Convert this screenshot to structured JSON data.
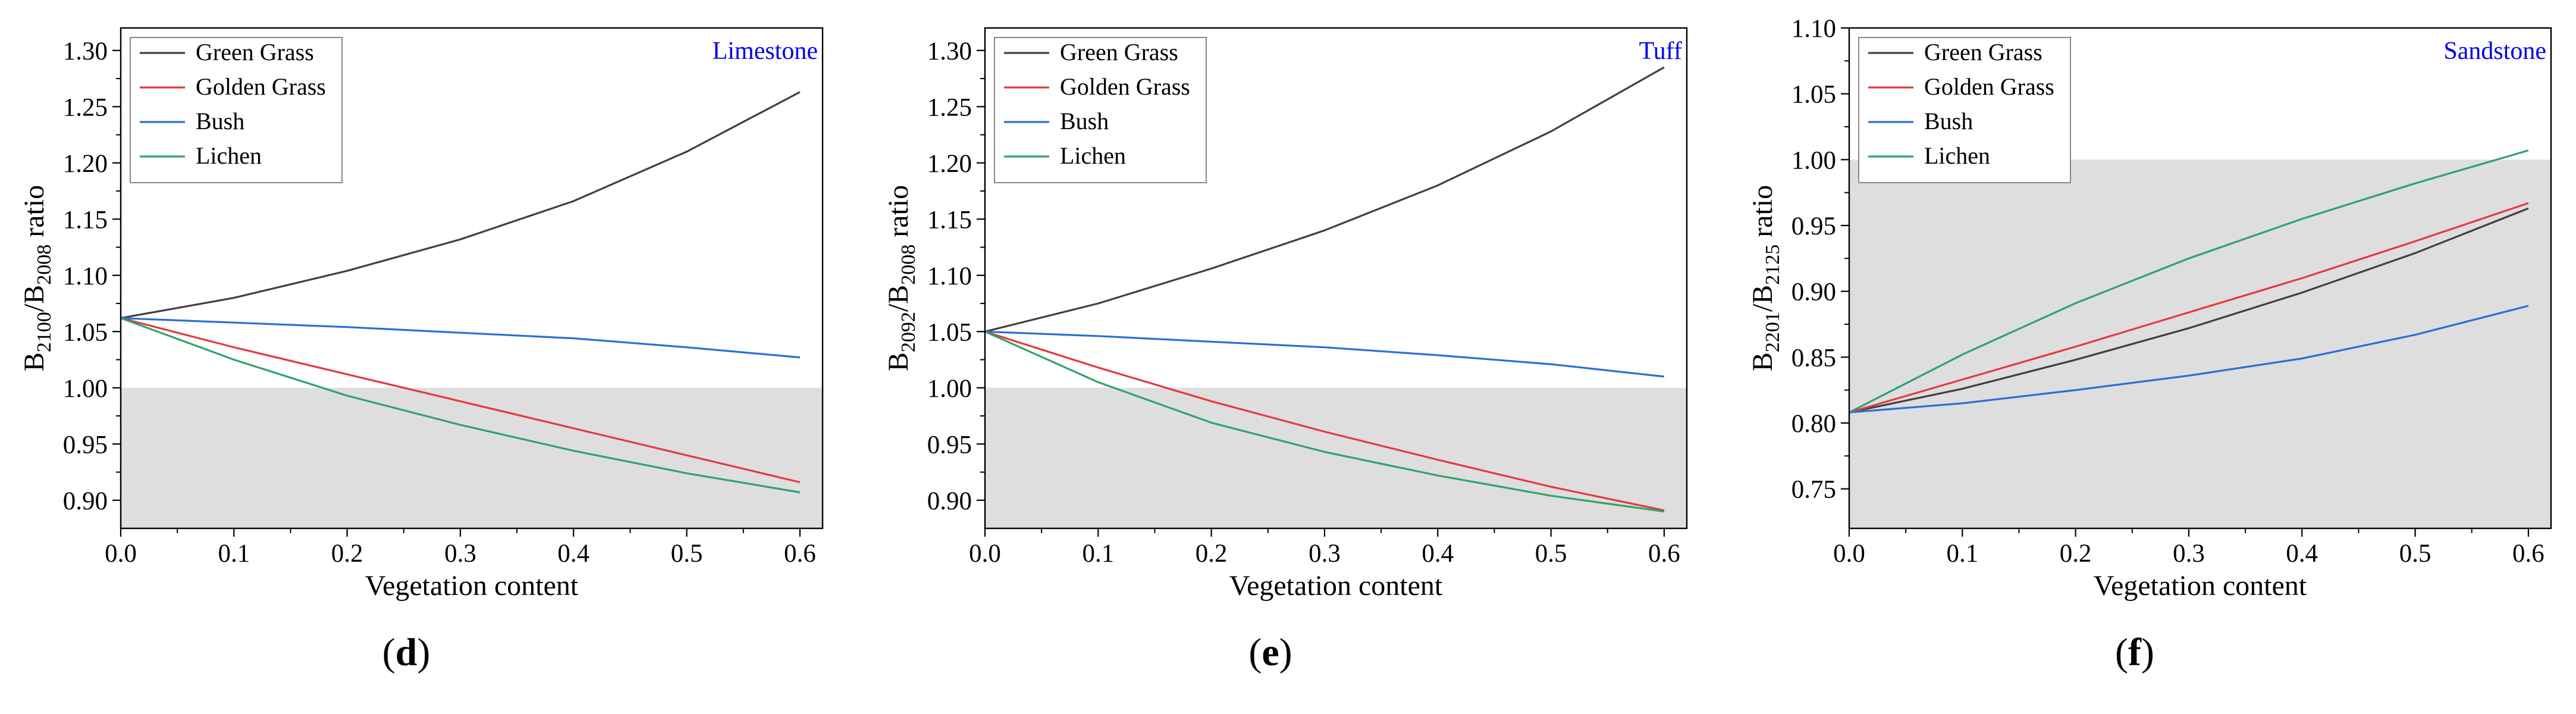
{
  "figure_title": "",
  "colors": {
    "Green Grass": "#404040",
    "Golden Grass": "#e8383c",
    "Bush": "#2a6fd6",
    "Lichen": "#2fa36b",
    "shade": "#dedede",
    "corner_label": "#0000ee"
  },
  "chart_data": [
    {
      "type": "line",
      "panel": "d",
      "caption_open": "(",
      "caption_letter": "d",
      "caption_close": ")",
      "corner_label": "Limestone",
      "xlabel": "Vegetation content",
      "ylabel": {
        "B": "B",
        "sub1": "2100",
        "slash": "/B",
        "sub2": "2008",
        "rest": " ratio"
      },
      "xlim": [
        0,
        0.62
      ],
      "ylim": [
        0.875,
        1.32
      ],
      "xticks": [
        0.0,
        0.1,
        0.2,
        0.3,
        0.4,
        0.5,
        0.6
      ],
      "xtick_labels": [
        "0.0",
        "0.1",
        "0.2",
        "0.3",
        "0.4",
        "0.5",
        "0.6"
      ],
      "yticks": [
        0.9,
        0.95,
        1.0,
        1.05,
        1.1,
        1.15,
        1.2,
        1.25,
        1.3
      ],
      "ytick_labels": [
        "0.90",
        "0.95",
        "1.00",
        "1.05",
        "1.10",
        "1.15",
        "1.20",
        "1.25",
        "1.30"
      ],
      "shade_range": [
        0.875,
        1.0
      ],
      "legend": "top-left",
      "x": [
        0.0,
        0.1,
        0.2,
        0.3,
        0.4,
        0.5,
        0.6
      ],
      "series": [
        {
          "name": "Green Grass",
          "values": [
            1.062,
            1.08,
            1.104,
            1.132,
            1.166,
            1.21,
            1.263
          ]
        },
        {
          "name": "Golden Grass",
          "values": [
            1.062,
            1.036,
            1.012,
            0.988,
            0.964,
            0.94,
            0.916
          ]
        },
        {
          "name": "Bush",
          "values": [
            1.062,
            1.058,
            1.054,
            1.049,
            1.044,
            1.036,
            1.027
          ]
        },
        {
          "name": "Lichen",
          "values": [
            1.062,
            1.025,
            0.993,
            0.967,
            0.944,
            0.924,
            0.907
          ]
        }
      ]
    },
    {
      "type": "line",
      "panel": "e",
      "caption_open": "(",
      "caption_letter": "e",
      "caption_close": ")",
      "corner_label": "Tuff",
      "xlabel": "Vegetation content",
      "ylabel": {
        "B": "B",
        "sub1": "2092",
        "slash": "/B",
        "sub2": "2008",
        "rest": " ratio"
      },
      "xlim": [
        0,
        0.62
      ],
      "ylim": [
        0.875,
        1.32
      ],
      "xticks": [
        0.0,
        0.1,
        0.2,
        0.3,
        0.4,
        0.5,
        0.6
      ],
      "xtick_labels": [
        "0.0",
        "0.1",
        "0.2",
        "0.3",
        "0.4",
        "0.5",
        "0.6"
      ],
      "yticks": [
        0.9,
        0.95,
        1.0,
        1.05,
        1.1,
        1.15,
        1.2,
        1.25,
        1.3
      ],
      "ytick_labels": [
        "0.90",
        "0.95",
        "1.00",
        "1.05",
        "1.10",
        "1.15",
        "1.20",
        "1.25",
        "1.30"
      ],
      "shade_range": [
        0.875,
        1.0
      ],
      "legend": "top-left",
      "x": [
        0.0,
        0.1,
        0.2,
        0.3,
        0.4,
        0.5,
        0.6
      ],
      "series": [
        {
          "name": "Green Grass",
          "values": [
            1.05,
            1.075,
            1.106,
            1.14,
            1.18,
            1.228,
            1.285
          ]
        },
        {
          "name": "Golden Grass",
          "values": [
            1.05,
            1.018,
            0.988,
            0.961,
            0.936,
            0.912,
            0.891
          ]
        },
        {
          "name": "Bush",
          "values": [
            1.05,
            1.046,
            1.041,
            1.036,
            1.029,
            1.021,
            1.01
          ]
        },
        {
          "name": "Lichen",
          "values": [
            1.05,
            1.005,
            0.969,
            0.943,
            0.922,
            0.904,
            0.89
          ]
        }
      ]
    },
    {
      "type": "line",
      "panel": "f",
      "caption_open": "(",
      "caption_letter": "f",
      "caption_close": ")",
      "corner_label": "Sandstone",
      "xlabel": "Vegetation content",
      "ylabel": {
        "B": "B",
        "sub1": "2201",
        "slash": "/B",
        "sub2": "2125",
        "rest": " ratio"
      },
      "xlim": [
        0,
        0.62
      ],
      "ylim": [
        0.72,
        1.1
      ],
      "xticks": [
        0.0,
        0.1,
        0.2,
        0.3,
        0.4,
        0.5,
        0.6
      ],
      "xtick_labels": [
        "0.0",
        "0.1",
        "0.2",
        "0.3",
        "0.4",
        "0.5",
        "0.6"
      ],
      "yticks": [
        0.75,
        0.8,
        0.85,
        0.9,
        0.95,
        1.0,
        1.05,
        1.1
      ],
      "ytick_labels": [
        "0.75",
        "0.80",
        "0.85",
        "0.90",
        "0.95",
        "1.00",
        "1.05",
        "1.10"
      ],
      "shade_range": [
        0.72,
        1.0
      ],
      "legend": "top-left",
      "x": [
        0.0,
        0.1,
        0.2,
        0.3,
        0.4,
        0.5,
        0.6
      ],
      "series": [
        {
          "name": "Green Grass",
          "values": [
            0.808,
            0.826,
            0.848,
            0.872,
            0.899,
            0.929,
            0.963
          ]
        },
        {
          "name": "Golden Grass",
          "values": [
            0.808,
            0.833,
            0.858,
            0.884,
            0.91,
            0.938,
            0.967
          ]
        },
        {
          "name": "Bush",
          "values": [
            0.808,
            0.815,
            0.825,
            0.836,
            0.849,
            0.867,
            0.889
          ]
        },
        {
          "name": "Lichen",
          "values": [
            0.808,
            0.852,
            0.891,
            0.925,
            0.955,
            0.982,
            1.007
          ]
        }
      ]
    }
  ]
}
